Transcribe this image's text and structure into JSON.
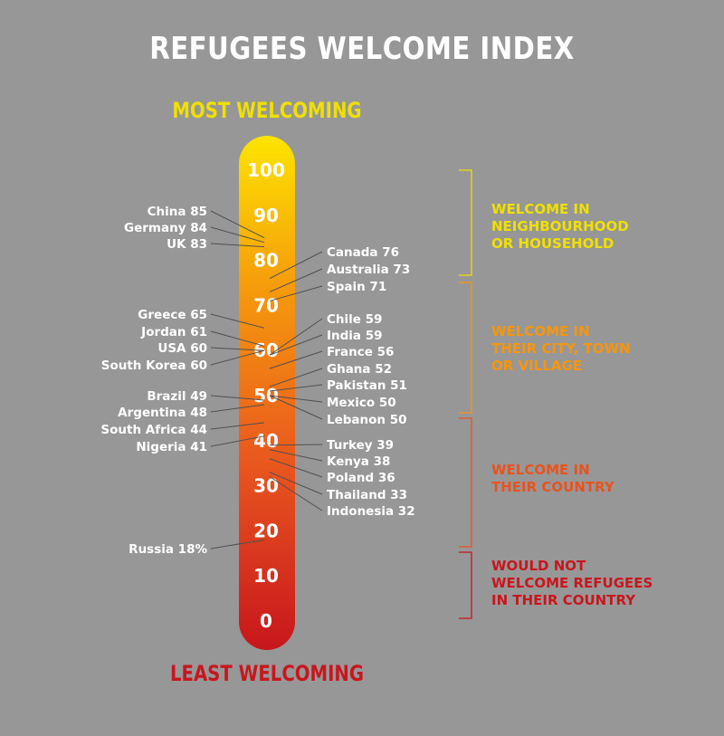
{
  "title": "REFUGEES WELCOME INDEX",
  "top_label": "MOST WELCOMING",
  "bottom_label": "LEAST WELCOMING",
  "chart_data": {
    "type": "thermometer",
    "title": "REFUGEES WELCOME INDEX",
    "scale": {
      "min": 0,
      "max": 100,
      "ticks": [
        0,
        10,
        20,
        30,
        40,
        50,
        60,
        70,
        80,
        90,
        100
      ]
    },
    "countries_left": [
      {
        "name": "China",
        "value": 85,
        "label": "85"
      },
      {
        "name": "Germany",
        "value": 84,
        "label": "84"
      },
      {
        "name": "UK",
        "value": 83,
        "label": "83"
      },
      {
        "name": "Greece",
        "value": 65,
        "label": "65"
      },
      {
        "name": "Jordan",
        "value": 61,
        "label": "61"
      },
      {
        "name": "USA",
        "value": 60,
        "label": "60"
      },
      {
        "name": "South Korea",
        "value": 60,
        "label": "60"
      },
      {
        "name": "Brazil",
        "value": 49,
        "label": "49"
      },
      {
        "name": "Argentina",
        "value": 48,
        "label": "48"
      },
      {
        "name": "South Africa",
        "value": 44,
        "label": "44"
      },
      {
        "name": "Nigeria",
        "value": 41,
        "label": "41"
      },
      {
        "name": "Russia",
        "value": 18,
        "label": "18%"
      }
    ],
    "countries_right": [
      {
        "name": "Canada",
        "value": 76,
        "label": "76"
      },
      {
        "name": "Australia",
        "value": 73,
        "label": "73"
      },
      {
        "name": "Spain",
        "value": 71,
        "label": "71"
      },
      {
        "name": "Chile",
        "value": 59,
        "label": "59"
      },
      {
        "name": "India",
        "value": 59,
        "label": "59"
      },
      {
        "name": "France",
        "value": 56,
        "label": "56"
      },
      {
        "name": "Ghana",
        "value": 52,
        "label": "52"
      },
      {
        "name": "Pakistan",
        "value": 51,
        "label": "51"
      },
      {
        "name": "Mexico",
        "value": 50,
        "label": "50"
      },
      {
        "name": "Lebanon",
        "value": 50,
        "label": "50"
      },
      {
        "name": "Turkey",
        "value": 39,
        "label": "39"
      },
      {
        "name": "Kenya",
        "value": 38,
        "label": "38"
      },
      {
        "name": "Poland",
        "value": 36,
        "label": "36"
      },
      {
        "name": "Thailand",
        "value": 33,
        "label": "33"
      },
      {
        "name": "Indonesia",
        "value": 32,
        "label": "32"
      }
    ],
    "categories": [
      {
        "label": "WELCOME IN NEIGHBOURHOOD OR HOUSEHOLD",
        "lines": [
          "WELCOME IN",
          "NEIGHBOURHOOD",
          "OR HOUSEHOLD"
        ],
        "color": "#f0e000",
        "range": [
          71,
          100
        ]
      },
      {
        "label": "WELCOME IN THEIR CITY, TOWN OR VILLAGE",
        "lines": [
          "WELCOME IN",
          "THEIR CITY, TOWN",
          "OR VILLAGE"
        ],
        "color": "#f5960f",
        "range": [
          48,
          70
        ]
      },
      {
        "label": "WELCOME IN THEIR COUNTRY",
        "lines": [
          "WELCOME IN",
          "THEIR COUNTRY"
        ],
        "color": "#e8531f",
        "range": [
          32,
          47
        ]
      },
      {
        "label": "WOULD NOT WELCOME REFUGEES IN THEIR COUNTRY",
        "lines": [
          "WOULD NOT",
          "WELCOME REFUGEES",
          "IN THEIR COUNTRY"
        ],
        "color": "#c8161d",
        "range": [
          18,
          31
        ]
      }
    ],
    "gradient_colors": [
      "#fde400",
      "#f59a0c",
      "#ea5a1e",
      "#c8161d"
    ]
  }
}
